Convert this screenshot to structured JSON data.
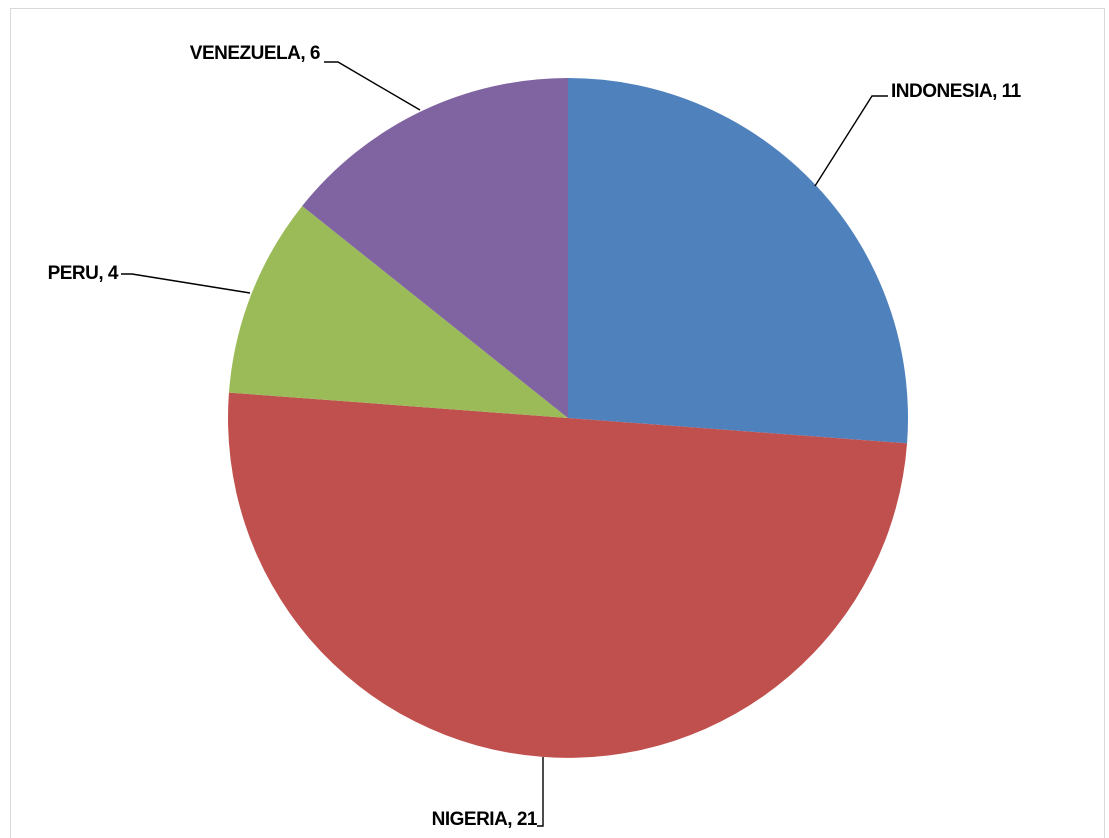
{
  "chart_data": {
    "type": "pie",
    "title": "",
    "slices": [
      {
        "label": "INDONESIA",
        "value": 11,
        "color": "#4f81bd"
      },
      {
        "label": "NIGERIA",
        "value": 21,
        "color": "#c0504d"
      },
      {
        "label": "PERU",
        "value": 4,
        "color": "#9bbb59"
      },
      {
        "label": "VENEZUELA",
        "value": 6,
        "color": "#8064a2"
      }
    ],
    "start_angle_deg": 0,
    "direction": "clockwise",
    "data_labels": "category, value",
    "legend": "none"
  }
}
